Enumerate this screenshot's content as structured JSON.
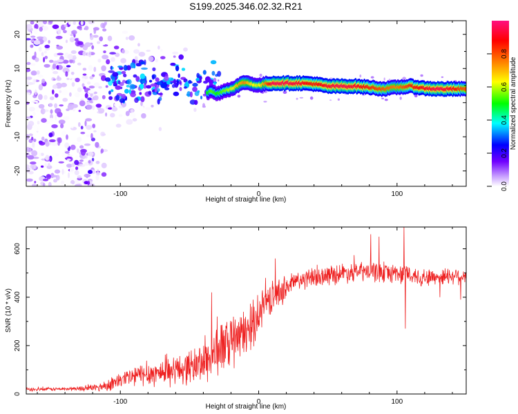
{
  "title": "S199.2025.346.02.32.R21",
  "chart_data": [
    {
      "type": "heatmap",
      "xlabel": "Height of straight line (km)",
      "ylabel": "Frequency (Hz)",
      "xlim": [
        -168,
        150
      ],
      "ylim": [
        -24.5,
        24
      ],
      "xticks": [
        "-100",
        "0",
        "100"
      ],
      "xtick_values": [
        -100,
        0,
        100
      ],
      "yticks": [
        "-20",
        "-10",
        "0",
        "10",
        "20"
      ],
      "ytick_values": [
        -20,
        -10,
        0,
        10,
        20
      ],
      "colorbar": {
        "label": "Normalized spectral amplitude",
        "ticks": [
          "0.0",
          "0.2",
          "0.4",
          "0.6",
          "0.8"
        ],
        "tick_values": [
          0.0,
          0.2,
          0.4,
          0.6,
          0.8
        ],
        "range": [
          0,
          1
        ]
      },
      "ridge": {
        "x": [
          -36,
          -34,
          -30,
          -25,
          -20,
          -15,
          -10,
          -5,
          0,
          5,
          10,
          20,
          30,
          40,
          50,
          60,
          70,
          80,
          90,
          100,
          110,
          120,
          130,
          140,
          148
        ],
        "freq": [
          3.0,
          3.5,
          2.5,
          3.5,
          4.0,
          5.0,
          6.0,
          5.5,
          5.0,
          5.5,
          5.7,
          5.7,
          5.7,
          5.5,
          4.8,
          4.8,
          4.8,
          4.5,
          4.0,
          4.5,
          4.8,
          4.2,
          4.0,
          4.0,
          4.0
        ],
        "amplitude": [
          0.5,
          0.55,
          0.5,
          0.55,
          0.6,
          0.7,
          0.75,
          0.65,
          0.6,
          0.75,
          0.95,
          0.95,
          0.92,
          0.85,
          0.92,
          0.95,
          0.92,
          0.85,
          0.8,
          0.75,
          0.85,
          0.9,
          0.95,
          0.9,
          0.8
        ]
      }
    },
    {
      "type": "line",
      "xlabel": "Height of straight line (km)",
      "ylabel": "SNR (10 * v/v)",
      "xlim": [
        -168,
        150
      ],
      "ylim": [
        0,
        690
      ],
      "xticks": [
        "-100",
        "0",
        "100"
      ],
      "xtick_values": [
        -100,
        0,
        100
      ],
      "yticks": [
        "0",
        "200",
        "400",
        "600"
      ],
      "ytick_values": [
        0,
        200,
        400,
        600
      ],
      "series": [
        {
          "name": "SNR",
          "color": "#ee2020",
          "x": [
            -168,
            -150,
            -130,
            -115,
            -105,
            -95,
            -85,
            -75,
            -65,
            -55,
            -45,
            -40,
            -35,
            -30,
            -25,
            -20,
            -15,
            -10,
            -5,
            0,
            5,
            10,
            15,
            20,
            25,
            30,
            40,
            50,
            60,
            70,
            80,
            90,
            100,
            110,
            120,
            130,
            140,
            150
          ],
          "mean": [
            18,
            20,
            22,
            28,
            45,
            65,
            80,
            85,
            95,
            105,
            120,
            135,
            150,
            180,
            200,
            210,
            230,
            250,
            280,
            330,
            380,
            400,
            420,
            440,
            460,
            470,
            480,
            490,
            500,
            505,
            505,
            500,
            500,
            490,
            480,
            485,
            490,
            490
          ],
          "noise": [
            6,
            6,
            8,
            15,
            25,
            35,
            40,
            45,
            50,
            55,
            65,
            75,
            85,
            90,
            95,
            95,
            90,
            80,
            80,
            70,
            60,
            55,
            50,
            45,
            40,
            35,
            35,
            35,
            35,
            35,
            35,
            35,
            35,
            35,
            30,
            30,
            30,
            30
          ],
          "spikes": [
            {
              "x": -34,
              "value": 420
            },
            {
              "x": -30,
              "value": 320
            },
            {
              "x": 5,
              "value": 480
            },
            {
              "x": 12,
              "value": 560
            },
            {
              "x": 81,
              "value": 660
            },
            {
              "x": 87,
              "value": 650
            },
            {
              "x": 105,
              "value": 690
            },
            {
              "x": 106,
              "value": 270
            },
            {
              "x": 131,
              "value": 400
            },
            {
              "x": 146,
              "value": 390
            }
          ]
        }
      ]
    }
  ]
}
